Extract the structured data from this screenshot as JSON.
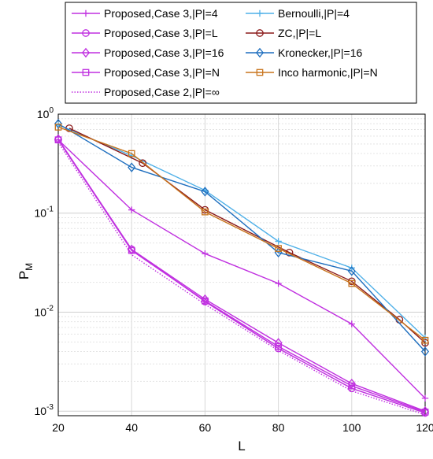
{
  "chart_data": {
    "type": "line",
    "xlabel": "L",
    "ylabel": "P",
    "ylabel_sub": "M",
    "x_ticks": [
      "20",
      "40",
      "60",
      "80",
      "100",
      "120"
    ],
    "y_ticks": [
      {
        "base": "10",
        "exp": "0",
        "value": 1
      },
      {
        "base": "10",
        "exp": "-1",
        "value": 0.1
      },
      {
        "base": "10",
        "exp": "-2",
        "value": 0.01
      },
      {
        "base": "10",
        "exp": "-3",
        "value": 0.001
      }
    ],
    "xlim": [
      20,
      120
    ],
    "ylim": [
      0.0009,
      1
    ],
    "y_scale": "log",
    "grid": true,
    "legend_position": "top",
    "series": [
      {
        "name": "Proposed,Case 3,|P|=4",
        "color": "#c030e0",
        "marker": "plus",
        "dash": "solid",
        "x": [
          20,
          40,
          60,
          80,
          100,
          120
        ],
        "y": [
          0.55,
          0.108,
          0.039,
          0.0195,
          0.0076,
          0.00135
        ]
      },
      {
        "name": "Proposed,Case 3,|P|=L",
        "color": "#c030e0",
        "marker": "circle",
        "dash": "solid",
        "x": [
          20,
          40,
          60,
          80,
          100,
          120
        ],
        "y": [
          0.55,
          0.043,
          0.0128,
          0.0043,
          0.0017,
          0.00096
        ]
      },
      {
        "name": "Proposed,Case 3,|P|=16",
        "color": "#c030e0",
        "marker": "diamond",
        "dash": "solid",
        "x": [
          20,
          40,
          60,
          80,
          100,
          120
        ],
        "y": [
          0.56,
          0.043,
          0.0135,
          0.0049,
          0.0019,
          0.001
        ]
      },
      {
        "name": "Proposed,Case 3,|P|=N",
        "color": "#c030e0",
        "marker": "square",
        "dash": "solid",
        "x": [
          20,
          40,
          60,
          80,
          100,
          120
        ],
        "y": [
          0.55,
          0.042,
          0.013,
          0.0045,
          0.0018,
          0.00098
        ]
      },
      {
        "name": "Proposed,Case 2,|P|=∞",
        "color": "#c030e0",
        "marker": "none",
        "dash": "dotted",
        "x": [
          20,
          40,
          60,
          80,
          100,
          120
        ],
        "y": [
          0.52,
          0.038,
          0.012,
          0.0041,
          0.0016,
          0.00092
        ]
      },
      {
        "name": "Bernoulli,|P|=4",
        "color": "#4fb0e8",
        "marker": "plus",
        "dash": "solid",
        "x": [
          20,
          40,
          60,
          80,
          100,
          120
        ],
        "y": [
          0.78,
          0.38,
          0.17,
          0.052,
          0.028,
          0.0055
        ]
      },
      {
        "name": "ZC,|P|=L",
        "color": "#8b1a1a",
        "marker": "circle",
        "dash": "solid",
        "x": [
          23,
          43,
          60,
          83,
          100,
          113,
          120
        ],
        "y": [
          0.72,
          0.32,
          0.108,
          0.04,
          0.0205,
          0.0084,
          0.0049
        ]
      },
      {
        "name": "Kronecker,|P|=16",
        "color": "#1f6fbf",
        "marker": "diamond",
        "dash": "solid",
        "x": [
          20,
          40,
          60,
          80,
          100,
          120
        ],
        "y": [
          0.8,
          0.29,
          0.165,
          0.04,
          0.026,
          0.004
        ]
      },
      {
        "name": "Inco harmonic,|P|=N",
        "color": "#c8741c",
        "marker": "square",
        "dash": "solid",
        "x": [
          20,
          40,
          60,
          80,
          100,
          120
        ],
        "y": [
          0.74,
          0.4,
          0.103,
          0.044,
          0.0195,
          0.0052
        ]
      }
    ]
  }
}
